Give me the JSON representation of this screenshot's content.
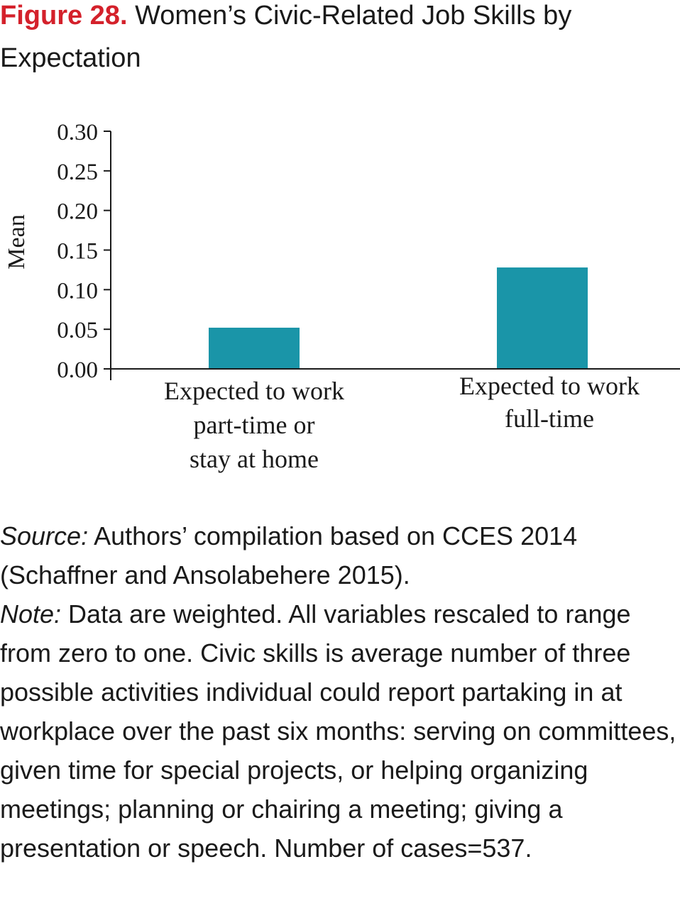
{
  "figure": {
    "label": "Figure 28.",
    "title": "Women’s Civic-Related Job Skills by Expectation"
  },
  "chart_data": {
    "type": "bar",
    "categories": [
      [
        "Expected to work",
        "part-time or",
        "stay at home"
      ],
      [
        "Expected to work",
        "full-time"
      ]
    ],
    "values": [
      0.052,
      0.128
    ],
    "ylabel": "Mean",
    "ylim": [
      0,
      0.3
    ],
    "yticks": [
      "0.00",
      "0.05",
      "0.10",
      "0.15",
      "0.20",
      "0.25",
      "0.30"
    ],
    "grid": false,
    "legend": "none",
    "bar_color": "#1a95a8"
  },
  "caption": {
    "source_label": "Source:",
    "source_text": " Authors’ compilation based on CCES 2014 (Schaffner and Ansolabehere 2015).",
    "note_label": "Note:",
    "note_text": " Data are weighted. All variables rescaled to range from zero to one. Civic skills is average number of three possible activities individual could report partaking in at workplace over the past six months: serving on committees, given time for special projects, or helping organizing meetings; planning or chairing a meeting; giving a presentation or speech. Number of cases=537."
  }
}
